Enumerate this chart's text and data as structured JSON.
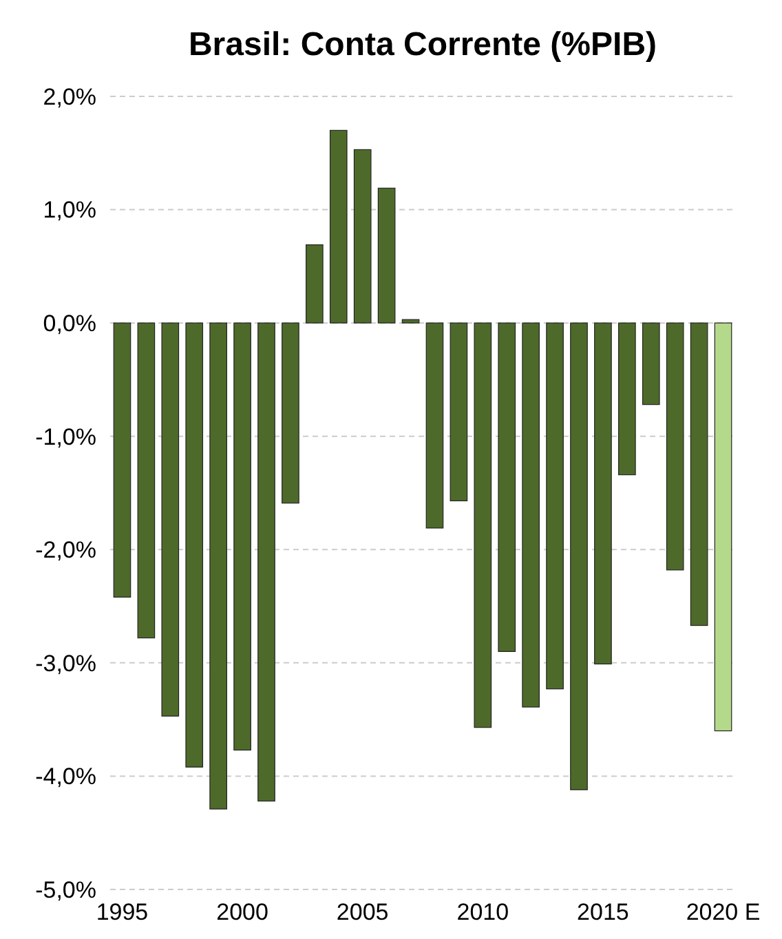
{
  "chart_data": {
    "type": "bar",
    "title": "Brasil: Conta Corrente (%PIB)",
    "categories": [
      "1995",
      null,
      null,
      null,
      null,
      "2000",
      null,
      null,
      null,
      null,
      "2005",
      null,
      null,
      null,
      null,
      "2010",
      null,
      null,
      null,
      null,
      "2015",
      null,
      null,
      null,
      null,
      "2020 E"
    ],
    "values": [
      -2.42,
      -2.78,
      -3.47,
      -3.92,
      -4.29,
      -3.77,
      -4.22,
      -1.59,
      0.69,
      1.7,
      1.53,
      1.19,
      0.03,
      -1.81,
      -1.57,
      -3.57,
      -2.9,
      -3.39,
      -3.23,
      -4.12,
      -3.01,
      -1.34,
      -0.72,
      -2.18,
      -2.67,
      -3.6
    ],
    "colors": [
      "#4e6a2a",
      "#4e6a2a",
      "#4e6a2a",
      "#4e6a2a",
      "#4e6a2a",
      "#4e6a2a",
      "#4e6a2a",
      "#4e6a2a",
      "#4e6a2a",
      "#4e6a2a",
      "#4e6a2a",
      "#4e6a2a",
      "#4e6a2a",
      "#4e6a2a",
      "#4e6a2a",
      "#4e6a2a",
      "#4e6a2a",
      "#4e6a2a",
      "#4e6a2a",
      "#4e6a2a",
      "#4e6a2a",
      "#4e6a2a",
      "#4e6a2a",
      "#4e6a2a",
      "#4e6a2a",
      "#b5d98a"
    ],
    "ylim": [
      -5,
      2
    ],
    "yticks": [
      {
        "value": -5,
        "label": "-5,0%"
      },
      {
        "value": -4,
        "label": "-4,0%"
      },
      {
        "value": -3,
        "label": "-3,0%"
      },
      {
        "value": -2,
        "label": "-2,0%"
      },
      {
        "value": -1,
        "label": "-1,0%"
      },
      {
        "value": 0,
        "label": "0,0%"
      },
      {
        "value": 1,
        "label": "1,0%"
      },
      {
        "value": 2,
        "label": "2,0%"
      }
    ],
    "grid": "y"
  }
}
